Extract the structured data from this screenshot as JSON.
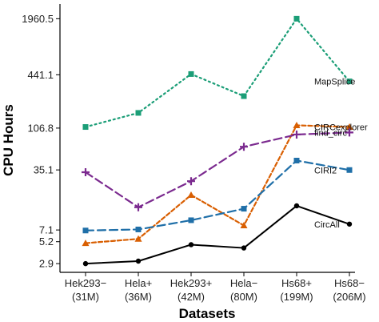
{
  "chart_data": {
    "type": "line",
    "xlabel": "Datasets",
    "ylabel": "CPU Hours",
    "yscale": "log",
    "grid": false,
    "legend": "direct labels at line ends",
    "categories": [
      [
        "Hek293−",
        "(31M)"
      ],
      [
        "Hela+",
        "(36M)"
      ],
      [
        "Hek293+",
        "(42M)"
      ],
      [
        "Hela−",
        "(80M)"
      ],
      [
        "Hs68+",
        "(199M)"
      ],
      [
        "Hs68−",
        "(206M)"
      ]
    ],
    "yticks": [
      2.9,
      5.2,
      7.1,
      35.1,
      106.8,
      441.1,
      1960.5
    ],
    "ylim": [
      2.3,
      2900
    ],
    "series": [
      {
        "name": "MapSplice",
        "color": "#1b9e77",
        "dash": "2,4",
        "marker": "square",
        "values": [
          110,
          160,
          450,
          250,
          1960.5,
          370
        ]
      },
      {
        "name": "CIRCexplorer",
        "color": "#d95f02",
        "dash": "5,3",
        "marker": "triangle",
        "values": [
          5.0,
          5.6,
          18.0,
          8.0,
          115,
          110
        ]
      },
      {
        "name": "find_circ",
        "color": "#7b2a8f",
        "dash": "10,5",
        "marker": "plus",
        "values": [
          33,
          13,
          26,
          65,
          90,
          95
        ]
      },
      {
        "name": "CIRI2",
        "color": "#1f6fa8",
        "dash": "10,5",
        "marker": "square",
        "values": [
          7.0,
          7.2,
          9.2,
          12.5,
          45,
          35
        ]
      },
      {
        "name": "CircAll",
        "color": "#000000",
        "dash": "",
        "marker": "circle",
        "values": [
          2.9,
          3.1,
          4.8,
          4.4,
          13.5,
          8.3
        ]
      }
    ]
  }
}
